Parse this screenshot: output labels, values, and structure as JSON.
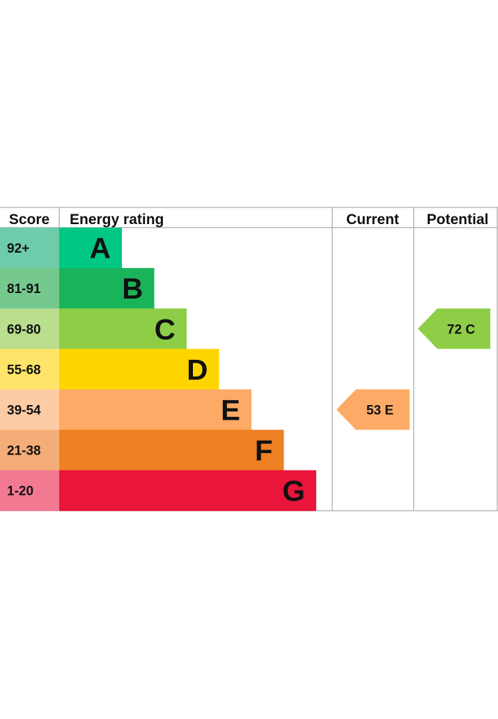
{
  "chart_data": {
    "type": "bar",
    "headers": {
      "score": "Score",
      "rating": "Energy rating",
      "current": "Current",
      "potential": "Potential"
    },
    "bands": [
      {
        "letter": "A",
        "range": "92+",
        "color": "#00c781",
        "score_color": "#6fccaa"
      },
      {
        "letter": "B",
        "range": "81-91",
        "color": "#19b459",
        "score_color": "#75c98f"
      },
      {
        "letter": "C",
        "range": "69-80",
        "color": "#8dce46",
        "score_color": "#b8de8e"
      },
      {
        "letter": "D",
        "range": "55-68",
        "color": "#ffd500",
        "score_color": "#ffe46a"
      },
      {
        "letter": "E",
        "range": "39-54",
        "color": "#fcaa65",
        "score_color": "#fdcba4"
      },
      {
        "letter": "F",
        "range": "21-38",
        "color": "#ef8023",
        "score_color": "#f4ad76"
      },
      {
        "letter": "G",
        "range": "1-20",
        "color": "#e9153b",
        "score_color": "#f17a92"
      }
    ],
    "current": {
      "value": 53,
      "band": "E",
      "color": "#fcaa65"
    },
    "potential": {
      "value": 72,
      "band": "C",
      "color": "#8dce46"
    }
  }
}
